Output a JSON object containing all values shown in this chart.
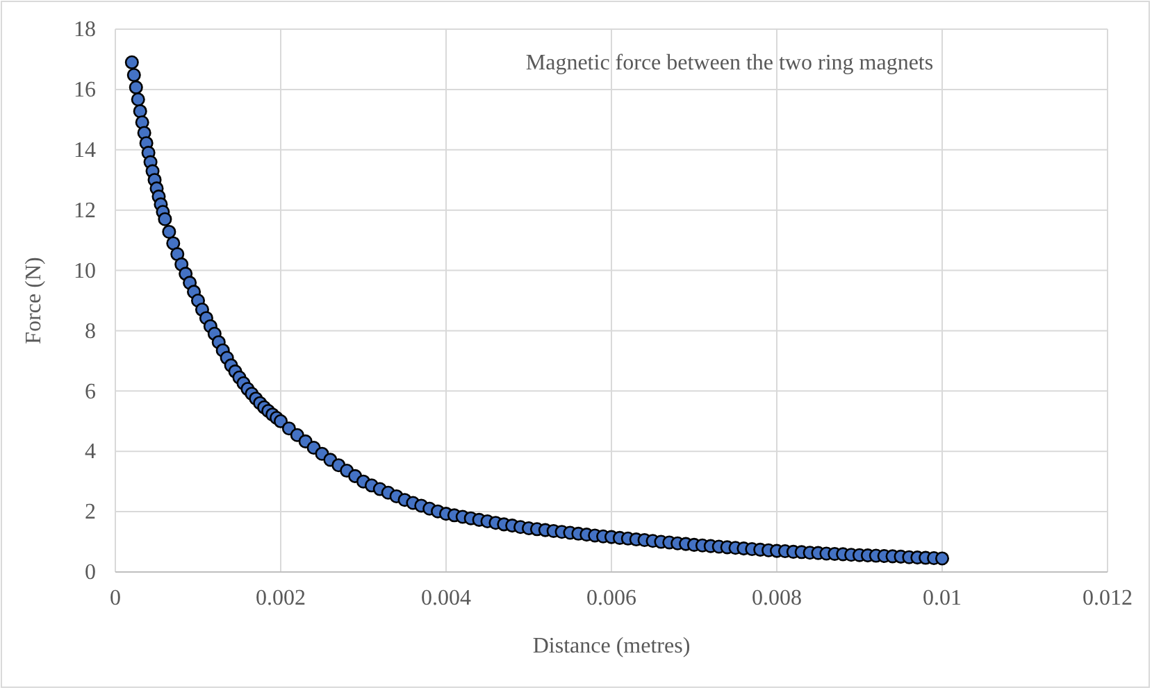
{
  "chart_data": {
    "type": "scatter",
    "title": "Magnetic force between the two ring magnets",
    "xlabel": "Distance (metres)",
    "ylabel": "Force (N)",
    "xlim": [
      0,
      0.012
    ],
    "xticks": [
      0,
      0.002,
      0.004,
      0.006,
      0.008,
      0.01,
      0.012
    ],
    "ylim": [
      0,
      18
    ],
    "yticks": [
      0,
      2,
      4,
      6,
      8,
      10,
      12,
      14,
      16,
      18
    ],
    "grid": true,
    "marker": "circle",
    "series": [
      {
        "color": "#4472c4",
        "x": [
          0.0002,
          0.000225,
          0.00025,
          0.000275,
          0.0003,
          0.000325,
          0.00035,
          0.000375,
          0.0004,
          0.000425,
          0.00045,
          0.000475,
          0.0005,
          0.000525,
          0.00055,
          0.000575,
          0.0006,
          0.00065,
          0.0007,
          0.00075,
          0.0008,
          0.00085,
          0.0009,
          0.00095,
          0.001,
          0.00105,
          0.0011,
          0.00115,
          0.0012,
          0.00125,
          0.0013,
          0.00135,
          0.0014,
          0.00145,
          0.0015,
          0.00155,
          0.0016,
          0.00165,
          0.0017,
          0.00175,
          0.0018,
          0.00185,
          0.0019,
          0.00195,
          0.002,
          0.0021,
          0.0022,
          0.0023,
          0.0024,
          0.0025,
          0.0026,
          0.0027,
          0.0028,
          0.0029,
          0.003,
          0.0031,
          0.0032,
          0.0033,
          0.0034,
          0.0035,
          0.0036,
          0.0037,
          0.0038,
          0.0039,
          0.004,
          0.0041,
          0.0042,
          0.0043,
          0.0044,
          0.0045,
          0.0046,
          0.0047,
          0.0048,
          0.0049,
          0.005,
          0.0051,
          0.0052,
          0.0053,
          0.0054,
          0.0055,
          0.0056,
          0.0057,
          0.0058,
          0.0059,
          0.006,
          0.0061,
          0.0062,
          0.0063,
          0.0064,
          0.0065,
          0.0066,
          0.0067,
          0.0068,
          0.0069,
          0.007,
          0.0071,
          0.0072,
          0.0073,
          0.0074,
          0.0075,
          0.0076,
          0.0077,
          0.0078,
          0.0079,
          0.008,
          0.0081,
          0.0082,
          0.0083,
          0.0084,
          0.0085,
          0.0086,
          0.0087,
          0.0088,
          0.0089,
          0.009,
          0.0091,
          0.0092,
          0.0093,
          0.0094,
          0.0095,
          0.0096,
          0.0097,
          0.0098,
          0.0099,
          0.01
        ],
        "values": [
          16.9,
          16.48,
          16.07,
          15.67,
          15.28,
          14.91,
          14.56,
          14.22,
          13.9,
          13.59,
          13.29,
          13.0,
          12.72,
          12.45,
          12.19,
          11.94,
          11.7,
          11.28,
          10.9,
          10.54,
          10.2,
          9.89,
          9.59,
          9.29,
          9.0,
          8.7,
          8.42,
          8.15,
          7.9,
          7.62,
          7.35,
          7.1,
          6.85,
          6.65,
          6.45,
          6.26,
          6.07,
          5.91,
          5.75,
          5.6,
          5.46,
          5.34,
          5.22,
          5.11,
          5.0,
          4.76,
          4.54,
          4.33,
          4.12,
          3.92,
          3.72,
          3.54,
          3.36,
          3.18,
          3.0,
          2.87,
          2.75,
          2.63,
          2.51,
          2.39,
          2.29,
          2.2,
          2.1,
          2.01,
          1.93,
          1.88,
          1.83,
          1.78,
          1.73,
          1.68,
          1.63,
          1.58,
          1.54,
          1.49,
          1.45,
          1.42,
          1.39,
          1.36,
          1.33,
          1.3,
          1.27,
          1.24,
          1.21,
          1.18,
          1.16,
          1.13,
          1.11,
          1.08,
          1.06,
          1.03,
          1.0,
          0.98,
          0.95,
          0.93,
          0.9,
          0.88,
          0.86,
          0.84,
          0.82,
          0.8,
          0.78,
          0.76,
          0.74,
          0.72,
          0.7,
          0.69,
          0.67,
          0.66,
          0.64,
          0.63,
          0.61,
          0.6,
          0.59,
          0.57,
          0.56,
          0.55,
          0.54,
          0.53,
          0.52,
          0.51,
          0.49,
          0.48,
          0.47,
          0.46,
          0.45
        ]
      }
    ]
  }
}
